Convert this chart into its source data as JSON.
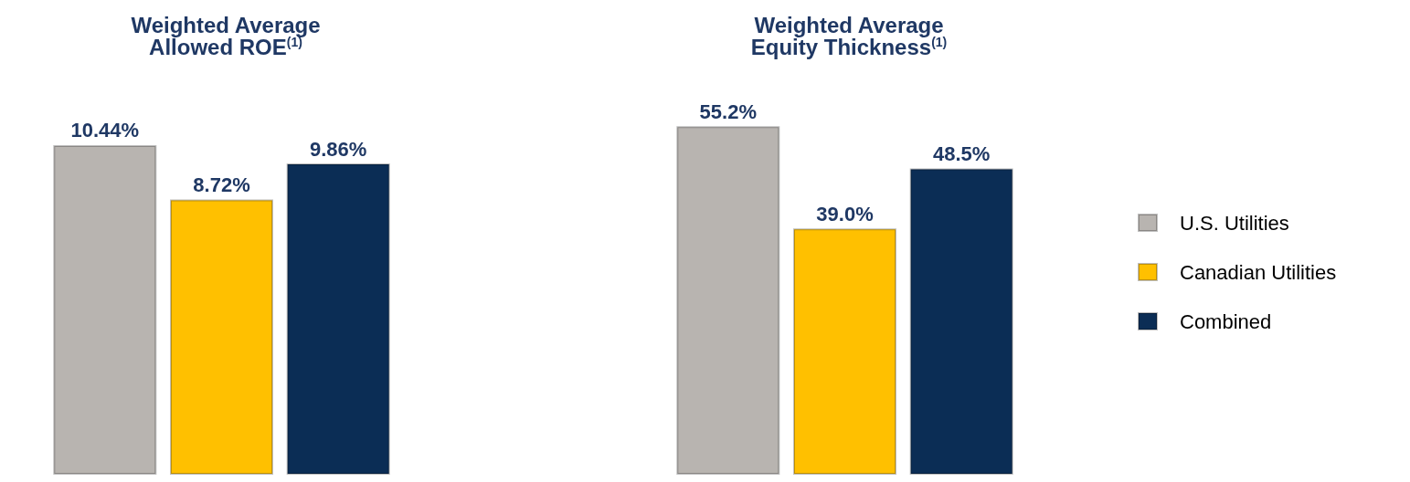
{
  "chart_data": [
    {
      "type": "bar",
      "title": "Weighted Average\nAllowed ROE$^{(1)}$",
      "categories": [
        null
      ],
      "legend": false,
      "series": [
        {
          "color": "#b8b4b0",
          "values": [
            10.44
          ],
          "value_labels": [
            "10.44%"
          ]
        },
        {
          "color": "#ffc000",
          "values": [
            8.72
          ],
          "value_labels": [
            "8.72%"
          ]
        },
        {
          "color": "#0b2d55",
          "values": [
            9.86
          ],
          "value_labels": [
            "9.86%"
          ]
        }
      ]
    },
    {
      "type": "bar",
      "title": "Weighted Average\nEquity Thickness$^{(1)}$",
      "categories": [
        null
      ],
      "legend": "right",
      "series": [
        {
          "name": "U.S. Utilities",
          "color": "#b8b4b0",
          "values": [
            55.2
          ],
          "value_labels": [
            "55.2%"
          ]
        },
        {
          "name": "Canadian Utilities",
          "color": "#ffc000",
          "values": [
            39.0
          ],
          "value_labels": [
            "39.0%"
          ]
        },
        {
          "name": "Combined",
          "color": "#0b2d55",
          "values": [
            48.5
          ],
          "value_labels": [
            "48.5%"
          ]
        }
      ]
    }
  ]
}
